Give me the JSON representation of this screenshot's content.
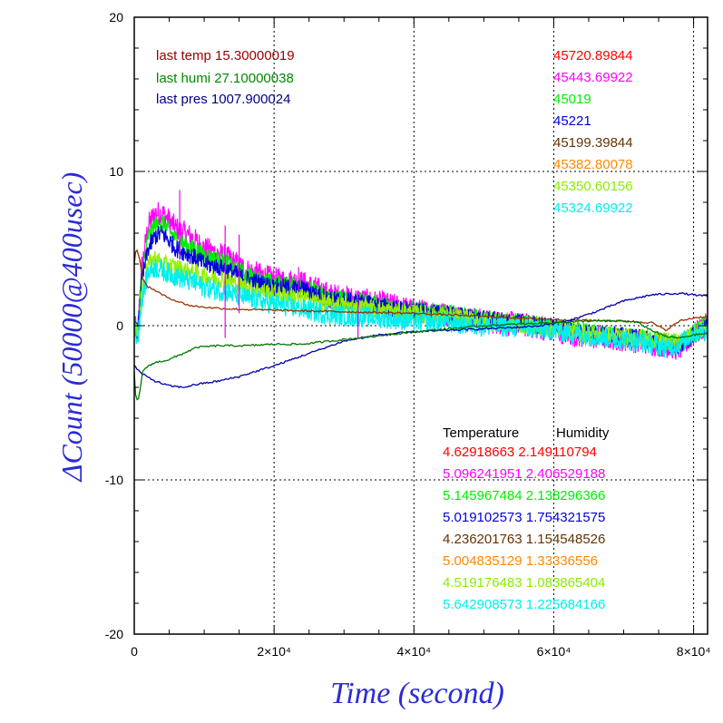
{
  "chart_data": {
    "type": "line",
    "xlabel": "Time (second)",
    "ylabel": "ΔCount (50000@400usec)",
    "xlim": [
      0,
      82000
    ],
    "ylim": [
      -20,
      20
    ],
    "x_ticks": [
      {
        "value": 0,
        "label": "0"
      },
      {
        "value": 20000,
        "label": "2×10⁴"
      },
      {
        "value": 40000,
        "label": "4×10⁴"
      },
      {
        "value": 60000,
        "label": "6×10⁴"
      },
      {
        "value": 80000,
        "label": "8×10⁴"
      }
    ],
    "y_ticks": [
      {
        "value": 20,
        "label": "20"
      },
      {
        "value": 10,
        "label": "10"
      },
      {
        "value": 0,
        "label": "0"
      },
      {
        "value": -10,
        "label": "-10"
      },
      {
        "value": -20,
        "label": "-20"
      }
    ],
    "grid": "dotted at major ticks",
    "series": [
      {
        "color": "#ff00ff",
        "band": 0.8,
        "x": [
          0,
          500,
          1000,
          2000,
          3000,
          4000,
          6000,
          8000,
          10000,
          13000,
          16000,
          20000,
          24000,
          28000,
          32000,
          36000,
          40000,
          45000,
          50000,
          55000,
          60000,
          64000,
          68000,
          72000,
          76000,
          78000,
          80000,
          82000
        ],
        "y": [
          0,
          -0.5,
          3.5,
          6.5,
          7.3,
          7.3,
          6.3,
          5.8,
          5.0,
          4.5,
          3.6,
          3.0,
          2.8,
          2.0,
          1.7,
          1.4,
          1.0,
          0.7,
          0.3,
          0.1,
          -0.3,
          -0.7,
          -0.8,
          -1.0,
          -1.3,
          -1.5,
          -0.6,
          0.1
        ]
      },
      {
        "color": "#00ee00",
        "band": 0.6,
        "x": [
          0,
          500,
          1000,
          2000,
          3000,
          4000,
          6000,
          8000,
          10000,
          13000,
          16000,
          20000,
          24000,
          28000,
          32000,
          36000,
          40000,
          45000,
          50000,
          55000,
          60000,
          64000,
          68000,
          72000,
          76000,
          78000,
          80000,
          82000
        ],
        "y": [
          0,
          -0.5,
          3.0,
          5.8,
          6.5,
          6.7,
          5.6,
          5.1,
          4.6,
          4.1,
          3.3,
          2.7,
          2.6,
          1.8,
          1.6,
          1.3,
          1.0,
          0.8,
          0.4,
          0.2,
          -0.1,
          -0.4,
          -0.6,
          -0.8,
          -1.0,
          -1.2,
          -0.5,
          0.2
        ]
      },
      {
        "color": "#0000dd",
        "band": 0.6,
        "x": [
          0,
          500,
          1000,
          2000,
          3000,
          4000,
          6000,
          8000,
          10000,
          13000,
          16000,
          20000,
          24000,
          28000,
          32000,
          36000,
          40000,
          45000,
          50000,
          55000,
          60000,
          64000,
          68000,
          72000,
          76000,
          78000,
          80000,
          82000
        ],
        "y": [
          0,
          -0.5,
          2.7,
          5.0,
          5.8,
          6.0,
          5.0,
          4.6,
          4.0,
          3.7,
          3.0,
          2.5,
          2.4,
          1.7,
          1.5,
          1.2,
          0.9,
          0.7,
          0.4,
          0.2,
          -0.1,
          -0.4,
          -0.6,
          -0.8,
          -1.1,
          -1.3,
          -0.6,
          0.0
        ]
      },
      {
        "color": "#99ee00",
        "band": 0.6,
        "x": [
          0,
          500,
          1000,
          2000,
          3000,
          4000,
          6000,
          8000,
          10000,
          13000,
          16000,
          20000,
          24000,
          28000,
          32000,
          36000,
          40000,
          45000,
          50000,
          55000,
          60000,
          64000,
          68000,
          72000,
          76000,
          78000,
          80000,
          82000
        ],
        "y": [
          0,
          -0.7,
          2.0,
          4.0,
          4.4,
          4.0,
          3.8,
          3.5,
          3.2,
          3.0,
          2.5,
          2.1,
          1.8,
          1.4,
          1.2,
          1.0,
          0.8,
          0.6,
          0.3,
          0.1,
          -0.2,
          -0.5,
          -0.6,
          -0.8,
          -1.0,
          -1.1,
          -0.5,
          -0.1
        ]
      },
      {
        "color": "#00eeee",
        "band": 0.7,
        "x": [
          0,
          500,
          1000,
          2000,
          3000,
          4000,
          6000,
          8000,
          10000,
          13000,
          16000,
          20000,
          24000,
          28000,
          32000,
          36000,
          40000,
          45000,
          50000,
          55000,
          60000,
          64000,
          68000,
          72000,
          76000,
          78000,
          80000,
          82000
        ],
        "y": [
          0,
          -1.0,
          1.5,
          3.5,
          3.8,
          3.6,
          3.2,
          2.9,
          2.5,
          2.2,
          1.8,
          1.4,
          1.1,
          0.7,
          0.6,
          0.5,
          0.3,
          0.2,
          0.0,
          -0.1,
          -0.3,
          -0.6,
          -0.8,
          -1.0,
          -1.4,
          -1.2,
          -0.5,
          -0.3
        ]
      },
      {
        "color": "#993300",
        "band": 0,
        "x": [
          0,
          300,
          700,
          1200,
          2000,
          3000,
          4000,
          6000,
          8000,
          10000,
          13000,
          16000,
          20000,
          25000,
          30000,
          40000,
          50000,
          60000,
          70000,
          74000,
          76000,
          78000,
          80000,
          82000
        ],
        "y": [
          4.0,
          5.1,
          4.5,
          3.0,
          2.5,
          2.3,
          2.0,
          1.6,
          1.3,
          1.2,
          1.1,
          1.05,
          1.0,
          0.95,
          0.9,
          0.8,
          0.6,
          0.4,
          0.3,
          0.2,
          -0.3,
          0.3,
          0.5,
          0.6
        ]
      },
      {
        "color": "#0000aa",
        "band": 0,
        "x": [
          0,
          1000,
          3000,
          5000,
          7000,
          9000,
          12000,
          15000,
          20000,
          25000,
          30000,
          35000,
          40000,
          45000,
          50000,
          55000,
          58000,
          62000,
          66000,
          70000,
          74000,
          78000,
          82000
        ],
        "y": [
          -2.6,
          -3.1,
          -3.6,
          -3.9,
          -4.0,
          -3.8,
          -3.6,
          -3.3,
          -2.6,
          -1.8,
          -1.0,
          -0.6,
          -0.4,
          -0.3,
          -0.2,
          -0.1,
          0.0,
          0.3,
          0.9,
          1.6,
          2.0,
          2.1,
          1.9
        ]
      },
      {
        "color": "#007700",
        "band": 0,
        "x": [
          0,
          200,
          500,
          800,
          1200,
          2000,
          3000,
          5000,
          7000,
          9000,
          12000,
          16000,
          20000,
          24000,
          28000,
          32000,
          36000,
          40000,
          45000,
          50000,
          55000,
          60000,
          65000,
          70000,
          72000,
          74000,
          76000,
          78000,
          80000,
          82000
        ],
        "y": [
          -3.0,
          -4.5,
          -5.0,
          -4.2,
          -3.0,
          -2.6,
          -2.4,
          -2.2,
          -1.8,
          -1.4,
          -1.3,
          -1.3,
          -1.2,
          -1.2,
          -1.0,
          -0.8,
          -0.6,
          -0.4,
          -0.2,
          0.0,
          0.1,
          0.2,
          0.3,
          0.3,
          0.2,
          -0.3,
          -0.7,
          -0.8,
          -0.6,
          -0.5
        ]
      }
    ],
    "spikes": [
      {
        "x": 6500,
        "y0": 4.5,
        "y1": 8.8
      },
      {
        "x": 13000,
        "y0": -0.8,
        "y1": 6.5
      },
      {
        "x": 15000,
        "y0": 0.8,
        "y1": 5.9
      },
      {
        "x": 23500,
        "y0": 2.3,
        "y1": 3.8
      },
      {
        "x": 32000,
        "y0": -0.8,
        "y1": 1.8
      }
    ]
  },
  "last_values": [
    {
      "text": "last temp 15.30000019",
      "color": "#990000"
    },
    {
      "text": "last humi 27.10000038",
      "color": "#008800"
    },
    {
      "text": "last pres 1007.900024",
      "color": "#000088"
    }
  ],
  "channel_values": [
    {
      "text": "45720.89844",
      "color": "#ff0000"
    },
    {
      "text": "45443.69922",
      "color": "#ff00ff"
    },
    {
      "text": "45019",
      "color": "#00ee00"
    },
    {
      "text": "45221",
      "color": "#0000dd"
    },
    {
      "text": "45199.39844",
      "color": "#663300"
    },
    {
      "text": "45382.80078",
      "color": "#ff8800"
    },
    {
      "text": "45350.60156",
      "color": "#88ee00"
    },
    {
      "text": "45324.69922",
      "color": "#00eeee"
    }
  ],
  "coef_header": {
    "temperature": "Temperature",
    "humidity": "Humidity"
  },
  "coef_rows": [
    {
      "text": "4.62918663 2.149110794",
      "color": "#ff0000"
    },
    {
      "text": "5.096241951 2.406529188",
      "color": "#ff00ff"
    },
    {
      "text": "5.145967484 2.138296366",
      "color": "#00ee00"
    },
    {
      "text": "5.019102573 1.754321575",
      "color": "#0000dd"
    },
    {
      "text": "4.236201763 1.154548526",
      "color": "#663300"
    },
    {
      "text": "5.004835129 1.33336556",
      "color": "#ff8800"
    },
    {
      "text": "4.519176483 1.083865404",
      "color": "#88ee00"
    },
    {
      "text": "5.642908573 1.225684166",
      "color": "#00eeee"
    }
  ]
}
